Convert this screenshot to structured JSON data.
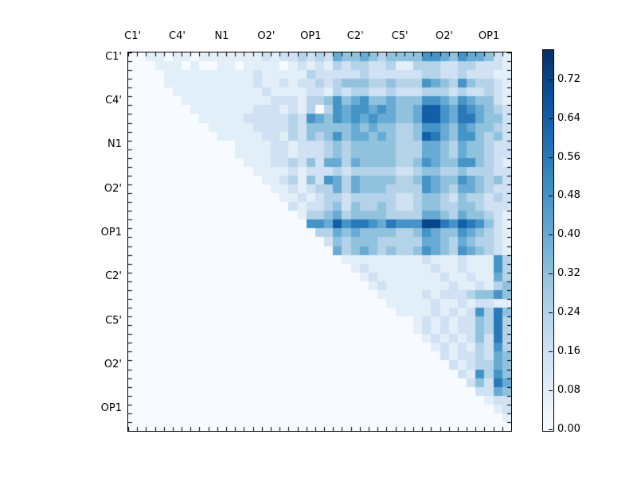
{
  "chart_data": {
    "type": "heatmap",
    "title": "",
    "n_rows": 43,
    "n_cols": 43,
    "layout": {
      "x_axis_position": "top",
      "y_axis_position": "left",
      "ticks": "inward, one per cell boundary on all four sides",
      "triangle": "upper triangle filled, lower triangle and diagonal ~0",
      "legend_position": "right-colorbar"
    },
    "x_tick_labels": [
      {
        "label": "C1'",
        "cell": 0
      },
      {
        "label": "C4'",
        "cell": 5
      },
      {
        "label": "N1",
        "cell": 10
      },
      {
        "label": "O2'",
        "cell": 15
      },
      {
        "label": "OP1",
        "cell": 20
      },
      {
        "label": "C2'",
        "cell": 25
      },
      {
        "label": "C5'",
        "cell": 30
      },
      {
        "label": "O2'",
        "cell": 35
      },
      {
        "label": "OP1",
        "cell": 40
      }
    ],
    "y_tick_labels": [
      {
        "label": "C1'",
        "cell": 0
      },
      {
        "label": "C4'",
        "cell": 5
      },
      {
        "label": "N1",
        "cell": 10
      },
      {
        "label": "O2'",
        "cell": 15
      },
      {
        "label": "OP1",
        "cell": 20
      },
      {
        "label": "C2'",
        "cell": 25
      },
      {
        "label": "C5'",
        "cell": 30
      },
      {
        "label": "O2'",
        "cell": 35
      },
      {
        "label": "OP1",
        "cell": 40
      }
    ],
    "matrix_encoding": {
      "format": "each row is a 43-char digit string, row index = y (top to bottom), char index = x (left to right)",
      "value": "digit * 0.08",
      "step": 0.08
    },
    "matrix_rows": [
      "0011011011111112122323254454344446654655421",
      "0001110100110111101212132332231133322332221",
      "0000111111111121111132222232222223322322211",
      "0000111111111121121223234443343336543643321",
      "0000011111111112111122132332232223332322321",
      "0000001111111111222133464564454446654654421",
      "0000000111111122212130365665654458865765432",
      "0000000011111222223265465656554458865775442",
      "0000000001111122223244444545443346654654432",
      "0000000000111112213243464554543348754664342",
      "0000000000001111221222343444443335543544322",
      "0000000000001111221222343444443335543544322",
      "0000000000000111223242553544443346544664321",
      "0000000000000011112122232333332234433433322",
      "0000000000000001123142653544443346544654342",
      "0000000000000000112123353544433336543554322",
      "0000000000000000011212332333332234432433232",
      "0000000000000000002122342433432234433443222",
      "0000000000000000000133453444433335543544321",
      "0000000000000000000066586776576669976876421",
      "0000000000000000000003354544443346544654321",
      "0000000000000000000000243444333335543543321",
      "0000000000000000000000053454343346543654321",
      "0000000000000000000000001111111112111211163",
      "0000000000000000000000000121111111211211163",
      "0000000000000000000000000012111111121121153",
      "0000000000000000000000000001211111112112134",
      "0000000000000000000000000000111112122234464",
      "0000000000000000000000000000011111211212211",
      "0000000000000000000000000000001111212126374",
      "0000000000000000000000000000000012121224373",
      "0000000000000000000000000000000012121224373",
      "0000000000000000000000000000000001212124273",
      "0000000000000000000000000000000000121213263",
      "0000000000000000000000000000000000021223254",
      "0000000000000000000000000000000000002123354",
      "0000000000000000000000000000000000000216364",
      "0000000000000000000000000000000000000024275",
      "0000000000000000000000000000000000000002254",
      "0000000000000000000000000000000000000000122",
      "0000000000000000000000000000000000000000012",
      "0000000000000000000000000000000000000000001",
      "0000000000000000000000000000000000000000000"
    ],
    "color_scale": {
      "name": "Blues",
      "vmin": 0.0,
      "vmax": 0.78,
      "anchors": [
        "#f7fbff",
        "#deebf7",
        "#c6dbef",
        "#9ecae1",
        "#6baed6",
        "#4292c6",
        "#2171b5",
        "#08519c",
        "#08306b"
      ]
    },
    "colorbar": {
      "tick_values": [
        0.0,
        0.08,
        0.16,
        0.24,
        0.32,
        0.4,
        0.48,
        0.56,
        0.64,
        0.72
      ],
      "tick_labels": [
        "0.00",
        "0.08",
        "0.16",
        "0.24",
        "0.32",
        "0.40",
        "0.48",
        "0.56",
        "0.64",
        "0.72"
      ]
    }
  }
}
